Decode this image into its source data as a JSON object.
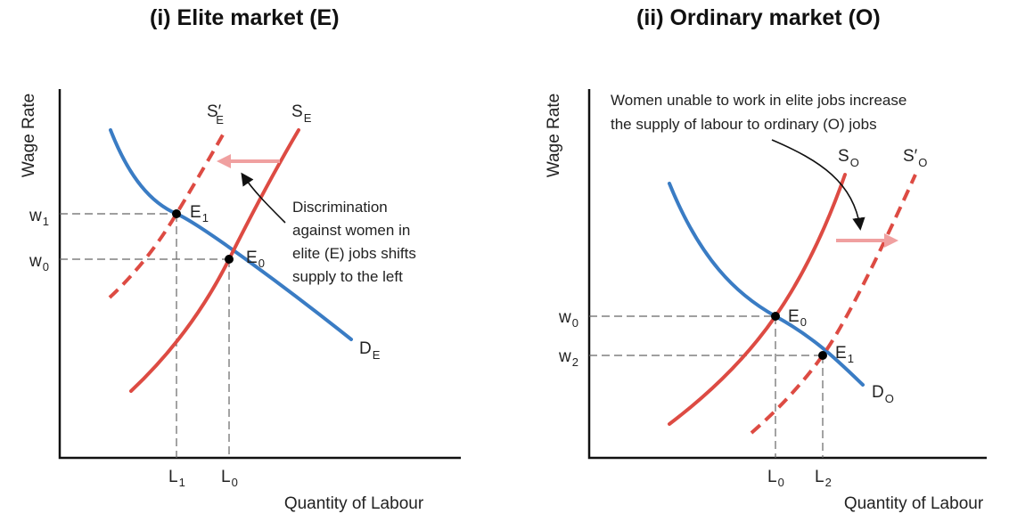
{
  "chart_data": [
    {
      "type": "line",
      "title": "(i) Elite market (E)",
      "xlabel": "Quantity of Labour",
      "ylabel": "Wage Rate",
      "x_ticks": [
        {
          "main": "L",
          "sub": "1"
        },
        {
          "main": "L",
          "sub": "0"
        }
      ],
      "y_ticks": [
        {
          "main": "w",
          "sub": "1"
        },
        {
          "main": "w",
          "sub": "0"
        }
      ],
      "series": [
        {
          "main": "D",
          "sub": "E",
          "style": "demand"
        },
        {
          "main": "S",
          "sub": "E",
          "style": "supply"
        },
        {
          "main": "S′",
          "sub": "E",
          "style": "shifted supply"
        }
      ],
      "points": [
        {
          "main": "E",
          "sub": "1"
        },
        {
          "main": "E",
          "sub": "0"
        }
      ],
      "annotation": [
        "Discrimination",
        "against women in",
        "elite (E) jobs shifts",
        "supply to the left"
      ],
      "shift_direction": "left"
    },
    {
      "type": "line",
      "title": "(ii) Ordinary market (O)",
      "xlabel": "Quantity of Labour",
      "ylabel": "Wage Rate",
      "x_ticks": [
        {
          "main": "L",
          "sub": "0"
        },
        {
          "main": "L",
          "sub": "2"
        }
      ],
      "y_ticks": [
        {
          "main": "w",
          "sub": "0"
        },
        {
          "main": "w",
          "sub": "2"
        }
      ],
      "series": [
        {
          "main": "D",
          "sub": "O",
          "style": "demand"
        },
        {
          "main": "S",
          "sub": "O",
          "style": "supply"
        },
        {
          "main": "S′",
          "sub": "O",
          "style": "shifted supply"
        }
      ],
      "points": [
        {
          "main": "E",
          "sub": "0"
        },
        {
          "main": "E",
          "sub": "1"
        }
      ],
      "annotation": [
        "Women unable to work in elite jobs increase",
        "the supply of labour to ordinary (O) jobs"
      ],
      "shift_direction": "right"
    }
  ],
  "colors": {
    "demand": "#3a7cc4",
    "supply": "#dd4b43",
    "shift_arrow": "#f0a0a0"
  }
}
